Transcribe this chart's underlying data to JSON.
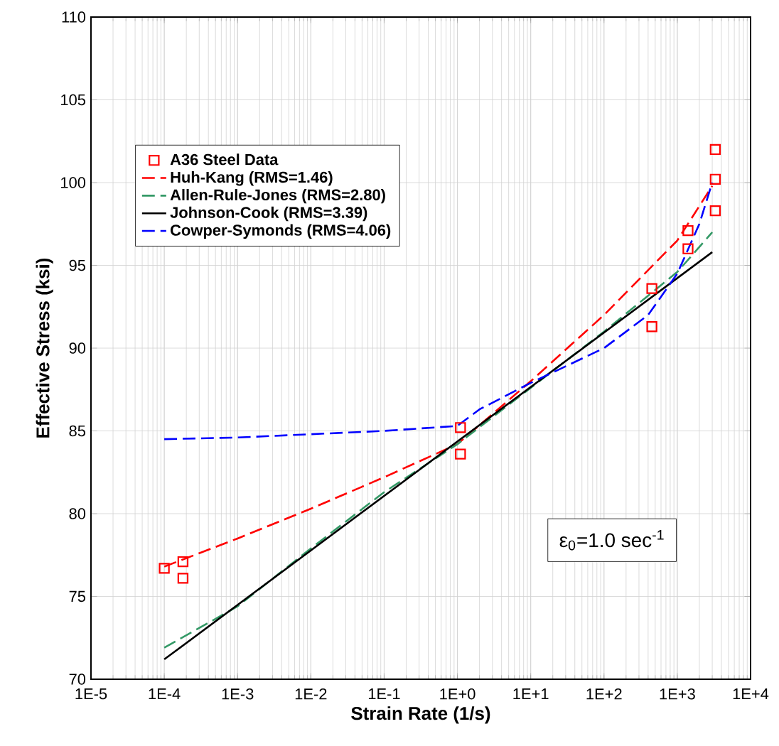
{
  "chart_data": {
    "type": "line",
    "xlabel": "Strain Rate (1/s)",
    "ylabel": "Effective Stress (ksi)",
    "log": "x",
    "grid": true,
    "legend": "top left",
    "xlim": [
      1e-05,
      10000.0
    ],
    "ylim": [
      70,
      110
    ],
    "xticks": [
      {
        "value": 1e-05,
        "label": "1E-5"
      },
      {
        "value": 0.0001,
        "label": "1E-4"
      },
      {
        "value": 0.001,
        "label": "1E-3"
      },
      {
        "value": 0.01,
        "label": "1E-2"
      },
      {
        "value": 0.1,
        "label": "1E-1"
      },
      {
        "value": 1,
        "label": "1E+0"
      },
      {
        "value": 10,
        "label": "1E+1"
      },
      {
        "value": 100,
        "label": "1E+2"
      },
      {
        "value": 1000,
        "label": "1E+3"
      },
      {
        "value": 10000,
        "label": "1E+4"
      }
    ],
    "yticks": [
      70,
      75,
      80,
      85,
      90,
      95,
      100,
      105,
      110
    ],
    "annotations": [
      "ε$_{0}$=1.0 sec$^{-1}$"
    ],
    "series": [
      {
        "name": "A36 Steel Data",
        "type": "scatter",
        "marker": "square",
        "color": "#ff0000",
        "x": [
          0.0001,
          0.00018,
          0.00018,
          1.1,
          1.1,
          450,
          450,
          1400,
          1400,
          3300,
          3300,
          3300
        ],
        "values": [
          76.7,
          77.1,
          76.1,
          85.2,
          83.6,
          93.6,
          91.3,
          97.1,
          96.0,
          102.0,
          100.2,
          98.3
        ]
      },
      {
        "name": "Huh-Kang (RMS=1.46)",
        "line_style": "dashed",
        "color": "#ff0000",
        "x": [
          0.0001,
          0.001,
          0.01,
          0.1,
          1,
          10,
          100,
          1000,
          3000
        ],
        "values": [
          76.8,
          78.5,
          80.3,
          82.2,
          84.2,
          88.0,
          92.0,
          96.5,
          99.8
        ]
      },
      {
        "name": "Allen-Rule-Jones (RMS=2.80)",
        "line_style": "dashed",
        "color": "#339966",
        "x": [
          0.0001,
          0.001,
          0.01,
          0.1,
          1,
          10,
          100,
          1000,
          3000
        ],
        "values": [
          71.9,
          74.4,
          77.9,
          81.3,
          84.2,
          87.6,
          91.0,
          94.6,
          97.0
        ]
      },
      {
        "name": "Johnson-Cook (RMS=3.39)",
        "line_style": "solid",
        "color": "#000000",
        "x": [
          0.0001,
          3000
        ],
        "values": [
          71.2,
          95.8
        ]
      },
      {
        "name": "Cowper-Symonds (RMS=4.06)",
        "line_style": "dashed",
        "color": "#0000ff",
        "x": [
          0.0001,
          0.001,
          0.01,
          0.1,
          1,
          2,
          10,
          100,
          400,
          1000,
          2000,
          3000
        ],
        "values": [
          84.5,
          84.6,
          84.8,
          85.0,
          85.3,
          86.3,
          87.9,
          90.0,
          92.0,
          94.5,
          97.5,
          100.0
        ]
      }
    ]
  }
}
